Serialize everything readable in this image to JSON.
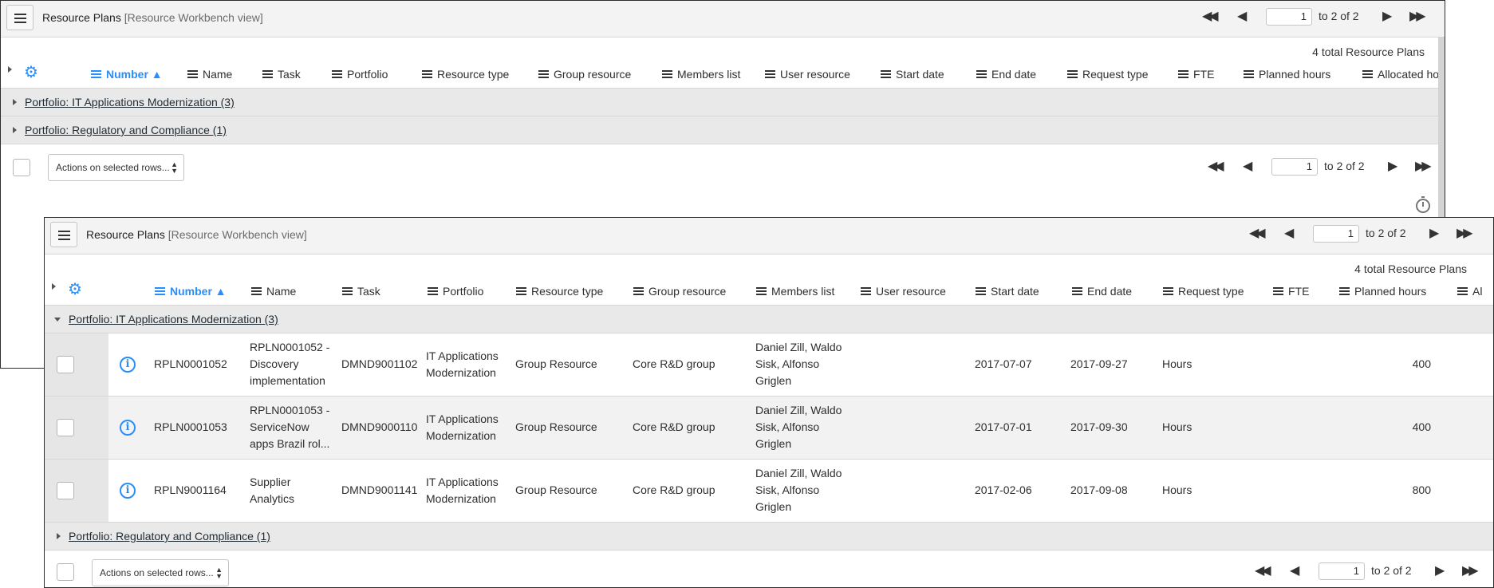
{
  "title": "Resource Plans",
  "view": "[Resource Workbench view]",
  "pager": {
    "page": "1",
    "range_text": "to 2 of 2"
  },
  "total_text": "4  total Resource Plans",
  "columns": [
    "Number",
    "Name",
    "Task",
    "Portfolio",
    "Resource type",
    "Group resource",
    "Members list",
    "User resource",
    "Start date",
    "End date",
    "Request type",
    "FTE",
    "Planned hours",
    "Allocated ho",
    "Al"
  ],
  "sort_indicator": "▲",
  "groups": [
    "Portfolio: IT Applications Modernization (3)",
    "Portfolio: Regulatory and Compliance (1)"
  ],
  "actions_label": "Actions on selected rows...",
  "rows": [
    {
      "number": "RPLN0001052",
      "name": "RPLN0001052 - Discovery implementation",
      "task": "DMND9001102",
      "portfolio": "IT Applications Modernization",
      "resource_type": "Group Resource",
      "group_resource": "Core R&D group",
      "members": "Daniel Zill, Waldo Sisk, Alfonso Griglen",
      "start": "2017-07-07",
      "end": "2017-09-27",
      "request_type": "Hours",
      "planned_hours": "400"
    },
    {
      "number": "RPLN0001053",
      "name": "RPLN0001053 - ServiceNow apps Brazil rol...",
      "task": "DMND9000110",
      "portfolio": "IT Applications Modernization",
      "resource_type": "Group Resource",
      "group_resource": "Core R&D group",
      "members": "Daniel Zill, Waldo Sisk, Alfonso Griglen",
      "start": "2017-07-01",
      "end": "2017-09-30",
      "request_type": "Hours",
      "planned_hours": "400"
    },
    {
      "number": "RPLN9001164",
      "name": "Supplier Analytics",
      "task": "DMND9001141",
      "portfolio": "IT Applications Modernization",
      "resource_type": "Group Resource",
      "group_resource": "Core R&D group",
      "members": "Daniel Zill, Waldo Sisk, Alfonso Griglen",
      "start": "2017-02-06",
      "end": "2017-09-08",
      "request_type": "Hours",
      "planned_hours": "800"
    }
  ],
  "icons": {
    "menu": "hamburger-icon",
    "settings": "gear-icon",
    "info": "info-icon",
    "timer": "stopwatch-icon"
  },
  "colors": {
    "accent": "#278efc",
    "group_row": "#e9e9e9",
    "title_bar": "#f3f3f3"
  }
}
